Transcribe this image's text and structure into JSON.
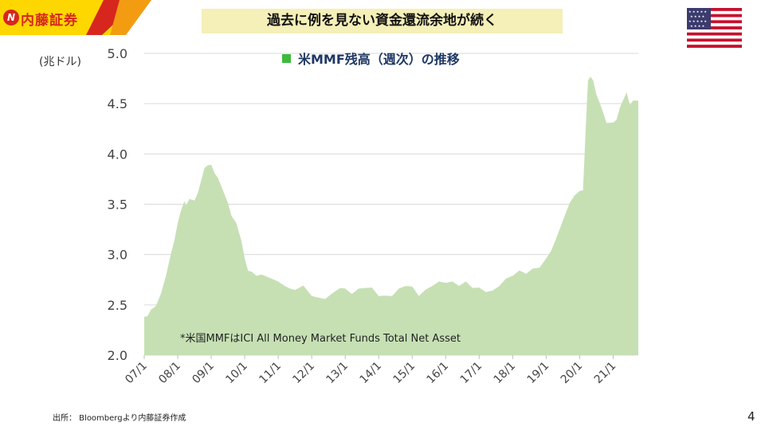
{
  "header": {
    "logo_text": "内藤証券",
    "title": "過去に例を見ない資金還流余地が続く"
  },
  "flag_icon": "us-flag-icon",
  "colors": {
    "area_fill": "#c6e0b4",
    "legend_marker": "#3dbb3d",
    "legend_text": "#1f3864",
    "title_bg": "#f5efb8",
    "logo_red": "#d7261e",
    "logo_yellow": "#ffd700"
  },
  "unit_label": "(兆ドル)",
  "footer": {
    "source": "出所： Bloombergより内藤証券作成",
    "page_number": "4"
  },
  "chart_data": {
    "type": "area",
    "legend": "米MMF残高（週次）の推移",
    "legend_position": "top-center",
    "annotation": "*米国MMFはICI All Money Market Funds Total Net Asset",
    "ylabel": "(兆ドル)",
    "ylim": [
      2.0,
      5.0
    ],
    "y_ticks": [
      "2.0",
      "2.5",
      "3.0",
      "3.5",
      "4.0",
      "4.5",
      "5.0"
    ],
    "x_range": [
      2007.0,
      2021.75
    ],
    "x_ticks": [
      {
        "x": 2007,
        "label": "07/1"
      },
      {
        "x": 2008,
        "label": "08/1"
      },
      {
        "x": 2009,
        "label": "09/1"
      },
      {
        "x": 2010,
        "label": "10/1"
      },
      {
        "x": 2011,
        "label": "11/1"
      },
      {
        "x": 2012,
        "label": "12/1"
      },
      {
        "x": 2013,
        "label": "13/1"
      },
      {
        "x": 2014,
        "label": "14/1"
      },
      {
        "x": 2015,
        "label": "15/1"
      },
      {
        "x": 2016,
        "label": "16/1"
      },
      {
        "x": 2017,
        "label": "17/1"
      },
      {
        "x": 2018,
        "label": "18/1"
      },
      {
        "x": 2019,
        "label": "19/1"
      },
      {
        "x": 2020,
        "label": "20/1"
      },
      {
        "x": 2021,
        "label": "21/1"
      }
    ],
    "grid": true,
    "series": [
      {
        "x": [
          2007.0,
          2007.1,
          2007.2,
          2007.35,
          2007.5,
          2007.65,
          2007.8,
          2007.9,
          2008.0,
          2008.1,
          2008.2,
          2008.25,
          2008.35,
          2008.5,
          2008.6,
          2008.7,
          2008.8,
          2008.9,
          2009.0,
          2009.1,
          2009.2,
          2009.35,
          2009.5,
          2009.6,
          2009.75,
          2009.9,
          2010.0,
          2010.1,
          2010.2,
          2010.35,
          2010.5,
          2010.75,
          2011.0,
          2011.2,
          2011.35,
          2011.5,
          2011.75,
          2012.0,
          2012.2,
          2012.4,
          2012.6,
          2012.85,
          2013.0,
          2013.2,
          2013.4,
          2013.6,
          2013.8,
          2014.0,
          2014.2,
          2014.4,
          2014.6,
          2014.8,
          2015.0,
          2015.2,
          2015.4,
          2015.6,
          2015.8,
          2016.0,
          2016.2,
          2016.4,
          2016.6,
          2016.8,
          2017.0,
          2017.2,
          2017.4,
          2017.6,
          2017.8,
          2018.0,
          2018.2,
          2018.4,
          2018.6,
          2018.8,
          2019.0,
          2019.15,
          2019.3,
          2019.5,
          2019.7,
          2019.85,
          2020.0,
          2020.1,
          2020.15,
          2020.2,
          2020.25,
          2020.32,
          2020.4,
          2020.5,
          2020.65,
          2020.8,
          2021.0,
          2021.1,
          2021.2,
          2021.3,
          2021.4,
          2021.5,
          2021.6,
          2021.75
        ],
        "y": [
          2.38,
          2.4,
          2.44,
          2.5,
          2.6,
          2.8,
          3.0,
          3.15,
          3.3,
          3.45,
          3.52,
          3.5,
          3.54,
          3.55,
          3.6,
          3.75,
          3.85,
          3.9,
          3.88,
          3.82,
          3.75,
          3.65,
          3.5,
          3.4,
          3.3,
          3.15,
          2.95,
          2.85,
          2.82,
          2.8,
          2.79,
          2.78,
          2.72,
          2.7,
          2.65,
          2.66,
          2.68,
          2.6,
          2.56,
          2.57,
          2.6,
          2.68,
          2.65,
          2.62,
          2.65,
          2.68,
          2.66,
          2.6,
          2.58,
          2.6,
          2.65,
          2.7,
          2.67,
          2.6,
          2.64,
          2.7,
          2.72,
          2.73,
          2.72,
          2.7,
          2.72,
          2.68,
          2.66,
          2.64,
          2.63,
          2.7,
          2.75,
          2.8,
          2.83,
          2.82,
          2.85,
          2.88,
          2.95,
          3.05,
          3.15,
          3.35,
          3.5,
          3.6,
          3.62,
          3.65,
          4.0,
          4.4,
          4.72,
          4.78,
          4.72,
          4.6,
          4.45,
          4.32,
          4.3,
          4.35,
          4.45,
          4.55,
          4.6,
          4.5,
          4.52,
          4.53
        ]
      }
    ]
  }
}
